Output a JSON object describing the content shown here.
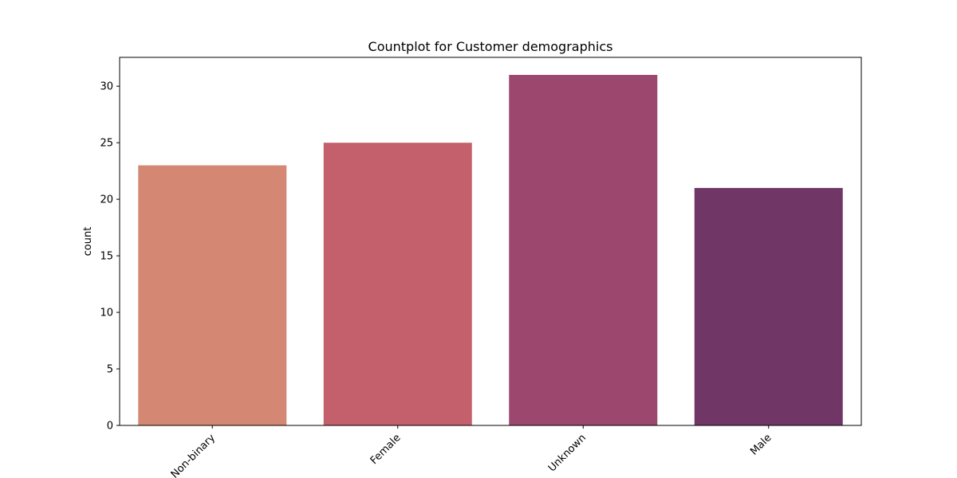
{
  "chart_data": {
    "type": "bar",
    "title": "Countplot for Customer demographics",
    "xlabel": "",
    "ylabel": "count",
    "categories": [
      "Non-binary",
      "Female",
      "Unknown",
      "Male"
    ],
    "values": [
      23,
      25,
      31,
      21
    ],
    "colors": [
      "#d48874",
      "#c4606b",
      "#9b476e",
      "#703766"
    ],
    "ylim": [
      0,
      32.55
    ],
    "yticks": [
      0,
      5,
      10,
      15,
      20,
      25,
      30
    ],
    "x_tick_rotation": 45,
    "grid": false
  }
}
